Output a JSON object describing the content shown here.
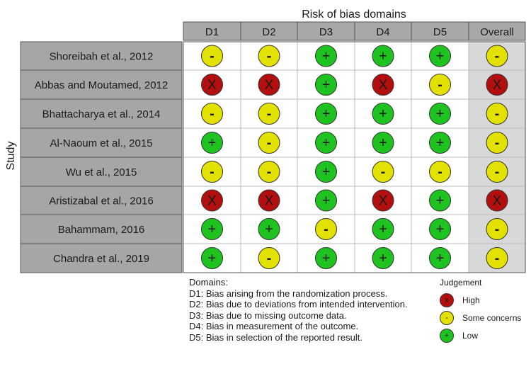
{
  "chart_data": {
    "type": "table",
    "title": "Risk of bias domains",
    "ylabel": "Study",
    "columns": [
      "D1",
      "D2",
      "D3",
      "D4",
      "D5",
      "Overall"
    ],
    "studies": [
      "Shoreibah et al., 2012",
      "Abbas and Moutamed, 2012",
      "Bhattacharya et al., 2014",
      "Al-Naoum et al., 2015",
      "Wu et al., 2015",
      "Aristizabal et al., 2016",
      "Bahammam, 2016",
      "Chandra et al., 2019"
    ],
    "judgements": [
      [
        "some",
        "some",
        "low",
        "low",
        "low",
        "some"
      ],
      [
        "high",
        "high",
        "low",
        "high",
        "some",
        "high"
      ],
      [
        "some",
        "some",
        "low",
        "low",
        "low",
        "some"
      ],
      [
        "low",
        "some",
        "low",
        "low",
        "low",
        "some"
      ],
      [
        "some",
        "some",
        "low",
        "some",
        "some",
        "some"
      ],
      [
        "high",
        "high",
        "low",
        "high",
        "low",
        "high"
      ],
      [
        "low",
        "low",
        "some",
        "low",
        "low",
        "some"
      ],
      [
        "low",
        "some",
        "low",
        "low",
        "low",
        "some"
      ]
    ]
  },
  "symbols": {
    "high": "X",
    "some": "-",
    "low": "+"
  },
  "colors": {
    "high": "#b40f0f",
    "some": "#e3e100",
    "low": "#1fc31f",
    "header_fill": "#a8a8a8",
    "study_fill": "#a6a6a6",
    "cell_fill": "#ffffff",
    "overall_fill": "#d8d8d8",
    "border": "#555555"
  },
  "domains_legend": {
    "heading": "Domains:",
    "items": [
      "D1: Bias arising from the randomization process.",
      "D2: Bias due to deviations from intended intervention.",
      "D3: Bias due to missing outcome data.",
      "D4: Bias in measurement of the outcome.",
      "D5: Bias in selection of the reported result."
    ]
  },
  "judgement_legend": {
    "title": "Judgement",
    "items": [
      {
        "key": "high",
        "label": "High"
      },
      {
        "key": "some",
        "label": "Some concerns"
      },
      {
        "key": "low",
        "label": "Low"
      }
    ]
  }
}
